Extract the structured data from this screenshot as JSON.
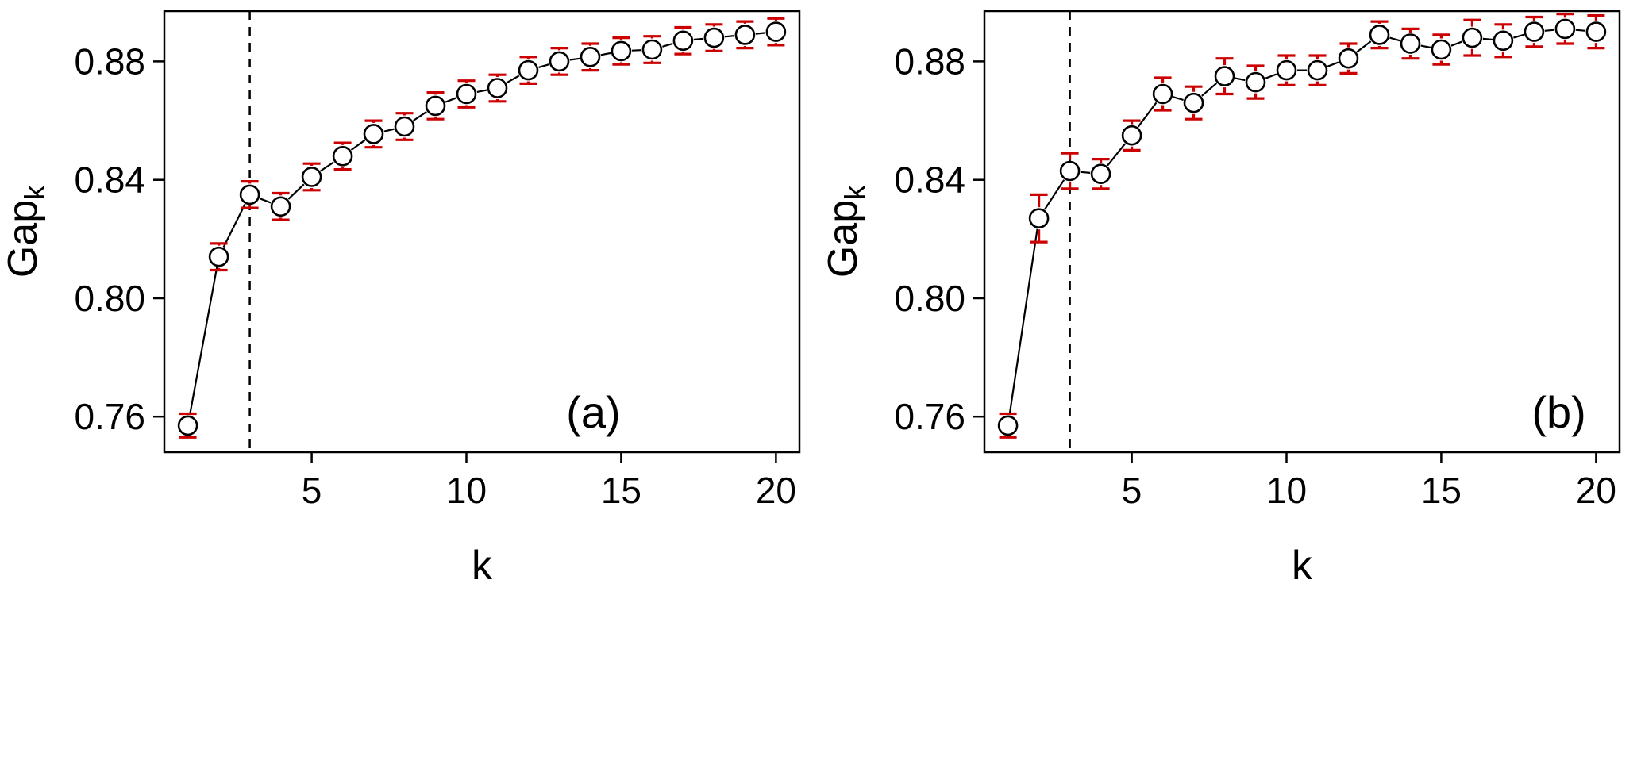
{
  "figure": {
    "background": "#ffffff",
    "text_color": "#000000"
  },
  "chart_data": [
    {
      "type": "scatter",
      "panel_label": "(a)",
      "xlabel": "k",
      "ylabel": "Gap",
      "ylabel_subscript": "k",
      "x": [
        1,
        2,
        3,
        4,
        5,
        6,
        7,
        8,
        9,
        10,
        11,
        12,
        13,
        14,
        15,
        16,
        17,
        18,
        19,
        20
      ],
      "values": [
        0.757,
        0.814,
        0.835,
        0.831,
        0.841,
        0.848,
        0.8555,
        0.858,
        0.865,
        0.869,
        0.871,
        0.877,
        0.88,
        0.8815,
        0.8835,
        0.884,
        0.887,
        0.888,
        0.889,
        0.89
      ],
      "errors": [
        0.004,
        0.0045,
        0.0045,
        0.0045,
        0.0045,
        0.0045,
        0.0045,
        0.0045,
        0.0045,
        0.0045,
        0.0045,
        0.0045,
        0.0045,
        0.0045,
        0.0045,
        0.0045,
        0.0045,
        0.0045,
        0.0045,
        0.0045
      ],
      "vline_x": 3,
      "vline_style": "dashed",
      "xlim": [
        0.24,
        20.76
      ],
      "ylim": [
        0.748,
        0.897
      ],
      "xticks": [
        5,
        10,
        15,
        20
      ],
      "xtick_labels": [
        "5",
        "10",
        "15",
        "20"
      ],
      "yticks": [
        0.76,
        0.8,
        0.84,
        0.88
      ],
      "ytick_labels": [
        "0.76",
        "0.80",
        "0.84",
        "0.88"
      ],
      "grid": false,
      "legend": "none",
      "point_style": "open-circle",
      "point_color": "#000000",
      "line_color": "#000000",
      "error_color": "#cc0000",
      "label_x": 14.1,
      "label_y": 0.7615
    },
    {
      "type": "scatter",
      "panel_label": "(b)",
      "xlabel": "k",
      "ylabel": "Gap",
      "ylabel_subscript": "k",
      "x": [
        1,
        2,
        3,
        4,
        5,
        6,
        7,
        8,
        9,
        10,
        11,
        12,
        13,
        14,
        15,
        16,
        17,
        18,
        19,
        20
      ],
      "values": [
        0.757,
        0.827,
        0.843,
        0.842,
        0.855,
        0.869,
        0.866,
        0.875,
        0.873,
        0.877,
        0.877,
        0.881,
        0.889,
        0.886,
        0.884,
        0.888,
        0.887,
        0.89,
        0.891,
        0.89
      ],
      "errors": [
        0.004,
        0.008,
        0.006,
        0.005,
        0.005,
        0.0055,
        0.0055,
        0.006,
        0.0055,
        0.005,
        0.005,
        0.005,
        0.0045,
        0.005,
        0.005,
        0.006,
        0.0055,
        0.005,
        0.005,
        0.0055
      ],
      "vline_x": 3,
      "vline_style": "dashed",
      "xlim": [
        0.24,
        20.76
      ],
      "ylim": [
        0.748,
        0.897
      ],
      "xticks": [
        5,
        10,
        15,
        20
      ],
      "xtick_labels": [
        "5",
        "10",
        "15",
        "20"
      ],
      "yticks": [
        0.76,
        0.8,
        0.84,
        0.88
      ],
      "ytick_labels": [
        "0.76",
        "0.80",
        "0.84",
        "0.88"
      ],
      "grid": false,
      "legend": "none",
      "point_style": "open-circle",
      "point_color": "#000000",
      "line_color": "#000000",
      "error_color": "#cc0000",
      "label_x": 18.8,
      "label_y": 0.7615
    }
  ]
}
